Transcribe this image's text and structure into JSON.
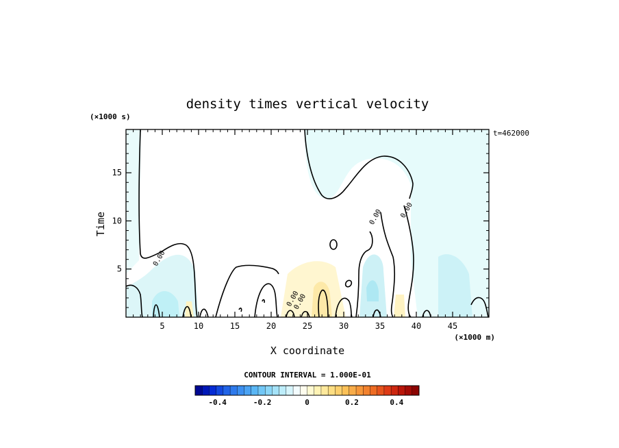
{
  "chart_data": {
    "type": "contour",
    "title": "density times vertical velocity",
    "xlabel": "X coordinate",
    "ylabel": "Time",
    "x_unit_label": "(×1000 m)",
    "y_unit_label": "(×1000 s)",
    "time_label": "t=462000",
    "xlim": [
      0,
      50
    ],
    "ylim": [
      0,
      19.5
    ],
    "x_ticks": [
      5,
      10,
      15,
      20,
      25,
      30,
      35,
      40,
      45
    ],
    "y_ticks": [
      5,
      10,
      15
    ],
    "contour_interval_label": "CONTOUR INTERVAL = 1.000E-01",
    "contour_labels": [
      {
        "text": "0.00",
        "x": 4.8,
        "y": 6.0
      },
      {
        "text": "0.00",
        "x": 34.6,
        "y": 10.3
      },
      {
        "text": "0.00",
        "x": 38.9,
        "y": 11.0
      },
      {
        "text": "0.00",
        "x": 23.2,
        "y": 1.8
      },
      {
        "text": "0.00",
        "x": 24.2,
        "y": 1.5
      }
    ],
    "colorbar": {
      "range": [
        -0.5,
        0.5
      ],
      "tick_values": [
        -0.4,
        -0.2,
        0,
        0.2,
        0.4
      ],
      "tick_labels": [
        "-0.4",
        "-0.2",
        "0",
        "0.2",
        "0.4"
      ],
      "colors_low_to_high": [
        "#00007f",
        "#0020d0",
        "#1e5fe6",
        "#3a8df0",
        "#5ab8f5",
        "#8fd9f7",
        "#c4f0fa",
        "#ffffff",
        "#fff7c0",
        "#fde28a",
        "#fbc45a",
        "#f6983a",
        "#ee6a22",
        "#dc3515",
        "#b20f08",
        "#800000"
      ]
    },
    "colors": {
      "weak_positive": "#fff6d0",
      "weak_negative": "#d8f6f8",
      "neg_patch": "#bfeff7"
    }
  }
}
